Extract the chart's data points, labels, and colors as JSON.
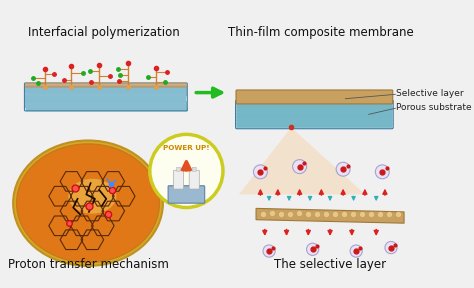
{
  "background_color": "#f0f0f0",
  "labels": {
    "top_left": "Interfacial polymerization",
    "top_right": "Thin-film composite membrane",
    "bottom_left": "Proton transfer mechanism",
    "bottom_right": "The selective layer",
    "selective_layer": "Selective layer",
    "porous_substrate": "Porous substrate"
  },
  "label_fontsize": 8.5,
  "annotation_fontsize": 6.5,
  "arrow_color": "#22bb22",
  "membrane_tan_color": "#c8a060",
  "membrane_blue_color": "#7ab8cc",
  "circle_fill": "#e07818",
  "circle_edge_outer": "#c8a020",
  "circle_edge_inner": "#d4a030",
  "power_circle_fill": "#fefef0",
  "power_circle_edge": "#cccc20",
  "red_arrow_color": "#dd2020",
  "cyan_arrow_color": "#30b0b8",
  "cone_color": "#f5d5b0",
  "hex_color": "#5a2808",
  "glow_color": "#f8e870",
  "molecule_stem_color": "#d08030",
  "molecule_red": "#dd2020",
  "molecule_green": "#20aa20",
  "label_color": "#111111"
}
